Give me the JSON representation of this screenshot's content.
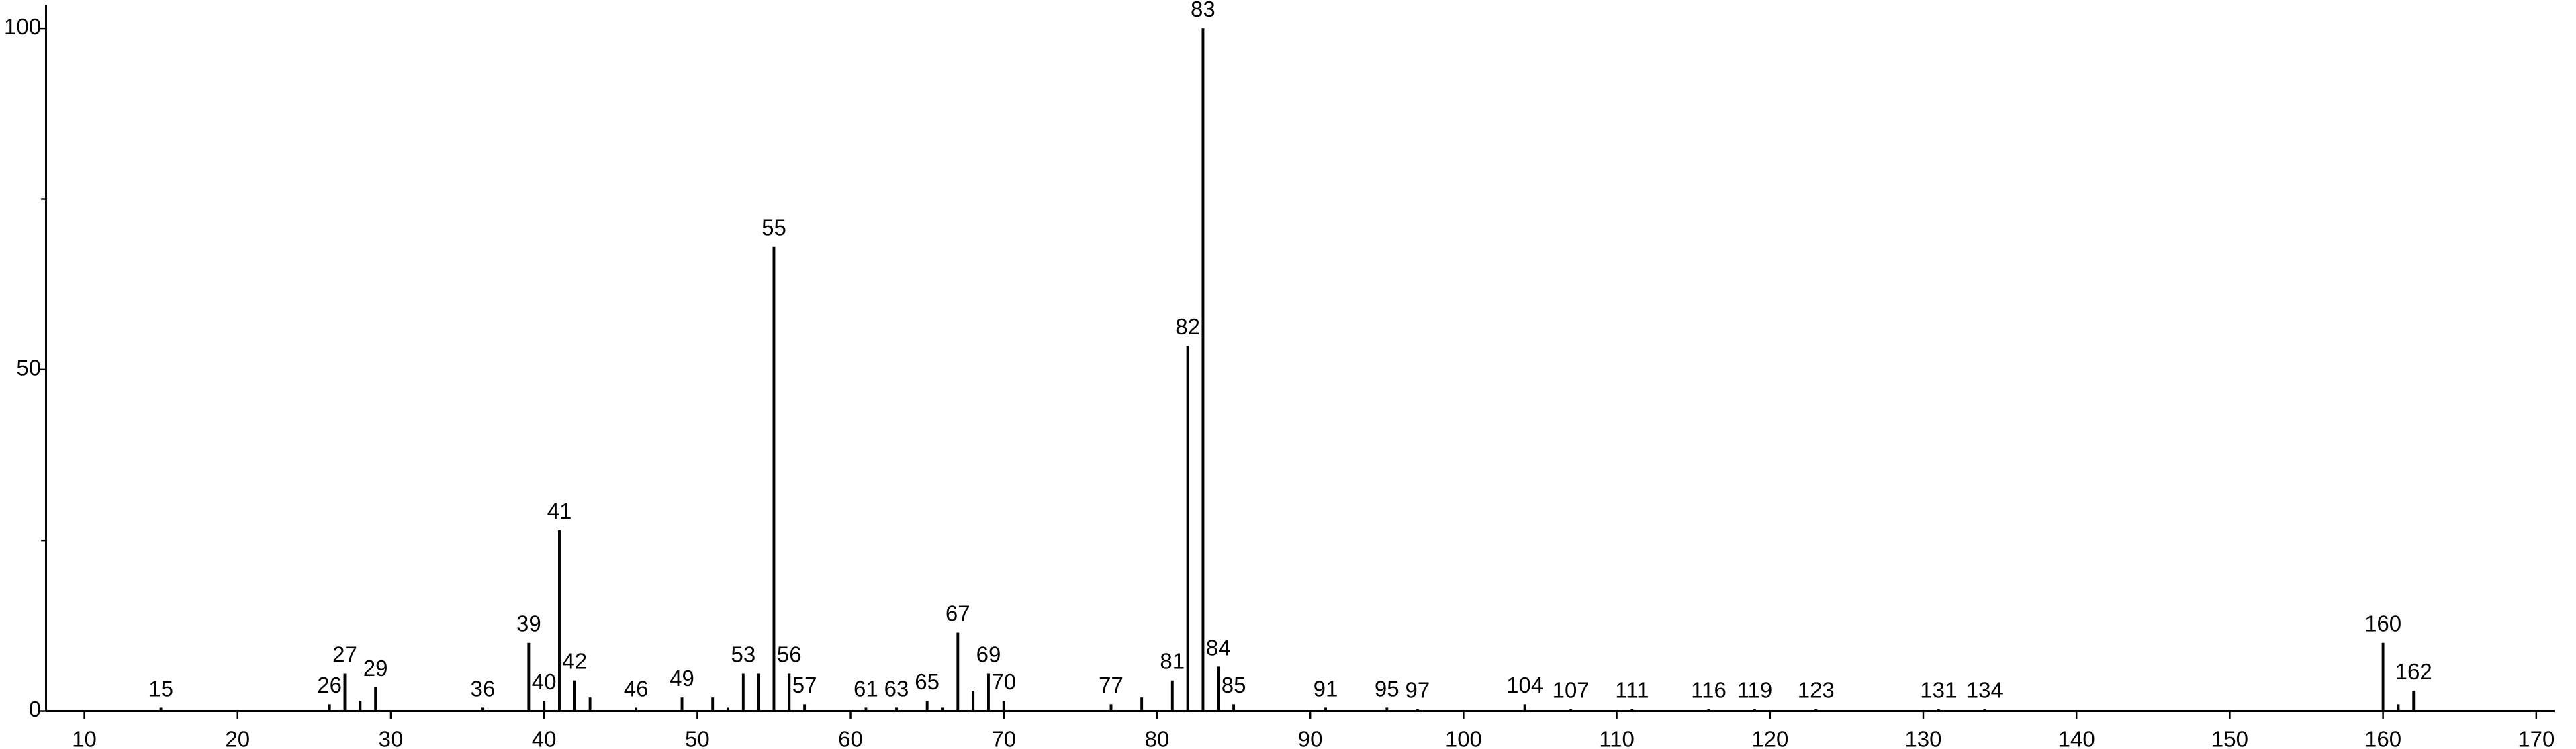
{
  "chart_data": {
    "type": "stem",
    "x": [
      15,
      26,
      27,
      28,
      29,
      36,
      39,
      40,
      41,
      42,
      43,
      46,
      49,
      51,
      52,
      53,
      54,
      55,
      56,
      57,
      61,
      63,
      65,
      66,
      67,
      68,
      69,
      70,
      77,
      79,
      81,
      82,
      83,
      84,
      85,
      91,
      95,
      97,
      104,
      107,
      111,
      116,
      119,
      123,
      131,
      134,
      160,
      161,
      162
    ],
    "values": [
      0.5,
      1,
      5.5,
      1.5,
      3.5,
      0.5,
      10,
      1.5,
      26.5,
      4.5,
      2,
      0.5,
      2,
      2,
      0.5,
      5.5,
      5.5,
      68,
      5.5,
      1,
      0.5,
      0.5,
      1.5,
      0.5,
      11.5,
      3,
      5.5,
      1.5,
      1,
      2,
      4.5,
      53.5,
      100,
      6.5,
      1,
      0.5,
      0.5,
      0.3,
      1,
      0.3,
      0.3,
      0.3,
      0.3,
      0.3,
      0.3,
      0.3,
      10,
      1,
      3
    ],
    "labels": [
      15,
      26,
      27,
      null,
      29,
      36,
      39,
      40,
      41,
      42,
      null,
      46,
      49,
      null,
      null,
      53,
      null,
      55,
      56,
      57,
      61,
      63,
      65,
      null,
      67,
      null,
      69,
      70,
      77,
      null,
      81,
      82,
      83,
      84,
      85,
      91,
      95,
      97,
      104,
      107,
      111,
      116,
      119,
      123,
      131,
      134,
      160,
      null,
      162
    ],
    "color": "#000000",
    "xlim": [
      7.5,
      171.2
    ],
    "xticks": [
      10,
      20,
      30,
      40,
      50,
      60,
      70,
      80,
      90,
      100,
      110,
      120,
      130,
      140,
      150,
      160,
      170
    ],
    "ylim": [
      0,
      103.4
    ],
    "yticks": [
      0,
      50,
      100
    ],
    "yminor": [
      25,
      75
    ]
  }
}
